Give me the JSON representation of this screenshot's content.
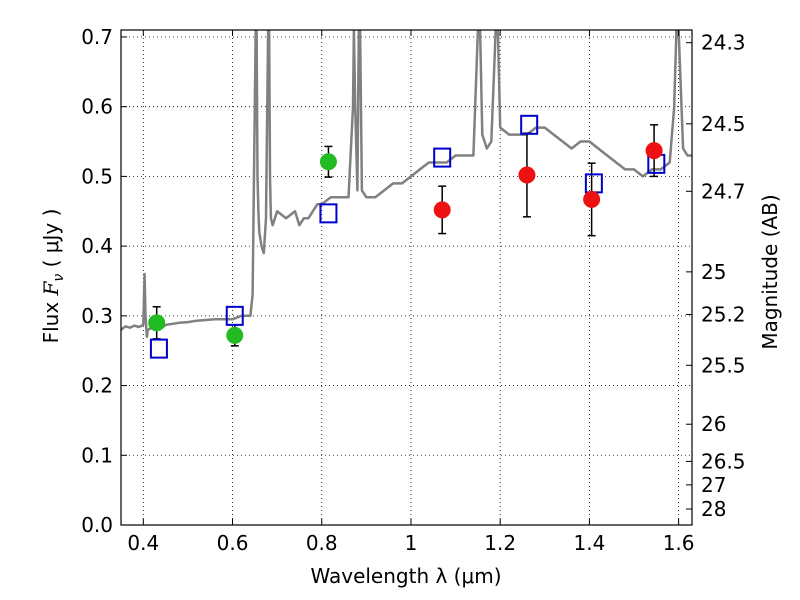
{
  "chart_data": {
    "type": "scatter",
    "xlabel": "Wavelength  λ (μm)",
    "ylabel": "Flux  F_ν  ( μJy )",
    "ylabel_right": "Magnitude (AB)",
    "xlim": [
      0.35,
      1.63
    ],
    "ylim": [
      0.0,
      0.71
    ],
    "grid": true,
    "x_ticks": [
      0.4,
      0.6,
      0.8,
      1.0,
      1.2,
      1.4,
      1.6
    ],
    "x_tick_labels": [
      "0.4",
      "0.6",
      "0.8",
      "1",
      "1.2",
      "1.4",
      "1.6"
    ],
    "y_ticks": [
      0.0,
      0.1,
      0.2,
      0.3,
      0.4,
      0.5,
      0.6,
      0.7
    ],
    "y_tick_labels": [
      "0.0",
      "0.1",
      "0.2",
      "0.3",
      "0.4",
      "0.5",
      "0.6",
      "0.7"
    ],
    "right_ticks": [
      {
        "mag": 24.3,
        "label": "24.3"
      },
      {
        "mag": 24.5,
        "label": "24.5"
      },
      {
        "mag": 24.7,
        "label": "24.7"
      },
      {
        "mag": 25.0,
        "label": "25"
      },
      {
        "mag": 25.2,
        "label": "25.2"
      },
      {
        "mag": 25.5,
        "label": "25.5"
      },
      {
        "mag": 26.0,
        "label": "26"
      },
      {
        "mag": 26.5,
        "label": "26.5"
      },
      {
        "mag": 27.0,
        "label": "27"
      },
      {
        "mag": 28.0,
        "label": "28"
      }
    ],
    "series": [
      {
        "kind": "spectrum",
        "color": "#808080",
        "x": [
          0.35,
          0.36,
          0.37,
          0.38,
          0.39,
          0.4,
          0.403,
          0.405,
          0.408,
          0.41,
          0.42,
          0.43,
          0.44,
          0.45,
          0.46,
          0.48,
          0.5,
          0.52,
          0.54,
          0.56,
          0.58,
          0.6,
          0.62,
          0.64,
          0.645,
          0.652,
          0.654,
          0.656,
          0.658,
          0.66,
          0.665,
          0.67,
          0.675,
          0.68,
          0.682,
          0.684,
          0.686,
          0.69,
          0.7,
          0.72,
          0.74,
          0.75,
          0.76,
          0.77,
          0.78,
          0.79,
          0.8,
          0.82,
          0.84,
          0.86,
          0.87,
          0.872,
          0.875,
          0.88,
          0.883,
          0.886,
          0.89,
          0.9,
          0.92,
          0.94,
          0.96,
          0.98,
          1.0,
          1.02,
          1.04,
          1.06,
          1.08,
          1.1,
          1.12,
          1.14,
          1.15,
          1.152,
          1.155,
          1.16,
          1.17,
          1.18,
          1.19,
          1.195,
          1.2,
          1.22,
          1.24,
          1.26,
          1.28,
          1.3,
          1.32,
          1.34,
          1.36,
          1.38,
          1.4,
          1.42,
          1.44,
          1.46,
          1.48,
          1.5,
          1.52,
          1.54,
          1.56,
          1.58,
          1.59,
          1.595,
          1.6,
          1.61,
          1.62,
          1.63
        ],
        "y": [
          0.28,
          0.285,
          0.283,
          0.286,
          0.284,
          0.287,
          0.36,
          0.3,
          0.27,
          0.28,
          0.283,
          0.286,
          0.282,
          0.287,
          0.288,
          0.29,
          0.291,
          0.293,
          0.294,
          0.295,
          0.295,
          0.295,
          0.3,
          0.3,
          0.33,
          0.71,
          0.71,
          0.5,
          0.45,
          0.42,
          0.4,
          0.39,
          0.44,
          0.72,
          0.72,
          0.5,
          0.44,
          0.43,
          0.45,
          0.44,
          0.45,
          0.43,
          0.44,
          0.44,
          0.45,
          0.46,
          0.46,
          0.47,
          0.47,
          0.47,
          0.6,
          0.71,
          0.6,
          0.48,
          0.71,
          0.71,
          0.48,
          0.47,
          0.47,
          0.48,
          0.49,
          0.49,
          0.5,
          0.51,
          0.52,
          0.52,
          0.52,
          0.53,
          0.53,
          0.53,
          0.71,
          0.71,
          0.71,
          0.56,
          0.54,
          0.55,
          0.71,
          0.71,
          0.57,
          0.56,
          0.56,
          0.56,
          0.57,
          0.57,
          0.56,
          0.55,
          0.54,
          0.55,
          0.55,
          0.54,
          0.53,
          0.52,
          0.51,
          0.51,
          0.5,
          0.51,
          0.51,
          0.52,
          0.6,
          0.71,
          0.71,
          0.54,
          0.53,
          0.53
        ]
      },
      {
        "kind": "model_points",
        "marker": "open-square",
        "color": "#0000cc",
        "x": [
          0.435,
          0.605,
          0.815,
          1.07,
          1.265,
          1.41,
          1.55
        ],
        "y": [
          0.253,
          0.3,
          0.447,
          0.527,
          0.574,
          0.49,
          0.518
        ]
      },
      {
        "kind": "optical_observations",
        "marker": "filled-circle",
        "color": "#22bb22",
        "x": [
          0.43,
          0.605,
          0.815
        ],
        "y": [
          0.29,
          0.272,
          0.521
        ],
        "yerr": [
          0.023,
          0.015,
          0.022
        ]
      },
      {
        "kind": "nir_observations",
        "marker": "filled-circle",
        "color": "#ee1111",
        "x": [
          1.07,
          1.26,
          1.405,
          1.545
        ],
        "y": [
          0.452,
          0.502,
          0.467,
          0.537
        ],
        "yerr": [
          0.034,
          0.06,
          0.052,
          0.037
        ]
      }
    ]
  }
}
